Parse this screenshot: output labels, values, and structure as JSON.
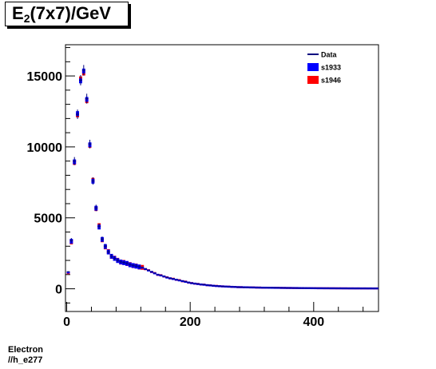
{
  "title": {
    "prefix": "E",
    "subscript": "2",
    "suffix": "(7x7)/GeV"
  },
  "footer": {
    "line1": "Electron",
    "line2": "//h_e277"
  },
  "colors": {
    "data": "#00007f",
    "s1933": "#0000ff",
    "s1946": "#ff0000"
  },
  "chart_data": {
    "type": "scatter",
    "title": "E2(7x7)/GeV",
    "xlabel": "",
    "ylabel": "",
    "xlim": [
      -2,
      505
    ],
    "ylim": [
      -1600,
      17200
    ],
    "xticks": [
      0,
      200,
      400
    ],
    "yticks": [
      0,
      5000,
      10000,
      15000
    ],
    "legend_position": "top-right",
    "legend": [
      {
        "name": "Data",
        "style": "line"
      },
      {
        "name": "s1933",
        "style": "box"
      },
      {
        "name": "s1946",
        "style": "box"
      }
    ],
    "x": [
      2.5,
      7.5,
      12.5,
      17.5,
      22.5,
      27.5,
      32.5,
      37.5,
      42.5,
      47.5,
      52.5,
      57.5,
      62.5,
      67.5,
      72.5,
      77.5,
      82.5,
      87.5,
      92.5,
      97.5,
      102.5,
      107.5,
      112.5,
      117.5,
      122.5,
      127.5,
      132.5,
      137.5,
      142.5,
      147.5,
      152.5,
      157.5,
      162.5,
      167.5,
      172.5,
      177.5,
      182.5,
      187.5,
      192.5,
      197.5,
      202.5,
      207.5,
      212.5,
      217.5,
      222.5,
      227.5,
      232.5,
      237.5,
      242.5,
      247.5,
      252.5,
      257.5,
      262.5,
      267.5,
      272.5,
      277.5,
      282.5,
      287.5,
      292.5,
      297.5,
      302.5,
      307.5,
      312.5,
      317.5,
      322.5,
      327.5,
      332.5,
      337.5,
      342.5,
      347.5,
      352.5,
      357.5,
      362.5,
      367.5,
      372.5,
      377.5,
      382.5,
      387.5,
      392.5,
      397.5,
      402.5,
      407.5,
      412.5,
      417.5,
      422.5,
      427.5,
      432.5,
      437.5,
      442.5,
      447.5,
      452.5,
      457.5,
      462.5,
      467.5,
      472.5,
      477.5,
      482.5,
      487.5,
      492.5,
      497.5,
      502.5
    ],
    "series": [
      {
        "name": "Data",
        "values": [
          1200,
          3400,
          9000,
          12300,
          14700,
          15400,
          13400,
          10200,
          7600,
          5700,
          4400,
          3500,
          3000,
          2600,
          2300,
          2150,
          2000,
          1900,
          1850,
          1800,
          1700,
          1650,
          1600,
          1550,
          1500,
          1400,
          1300,
          1200,
          1100,
          1000,
          950,
          880,
          800,
          750,
          700,
          650,
          600,
          550,
          500,
          450,
          400,
          370,
          340,
          310,
          290,
          260,
          240,
          220,
          200,
          185,
          170,
          160,
          150,
          140,
          130,
          120,
          115,
          110,
          105,
          100,
          95,
          90,
          85,
          80,
          78,
          75,
          72,
          70,
          68,
          65,
          62,
          60,
          58,
          56,
          54,
          52,
          50,
          48,
          46,
          44,
          42,
          40,
          39,
          38,
          37,
          36,
          35,
          34,
          33,
          32,
          31,
          30,
          30,
          29,
          29,
          28,
          28,
          27,
          27,
          26,
          26
        ]
      },
      {
        "name": "s1933",
        "values": [
          1150,
          3350,
          8950,
          12350,
          14650,
          15350,
          13350,
          10150,
          7580,
          5680,
          4350,
          3480,
          2980,
          2590,
          2290,
          2140,
          1990,
          1890,
          1840,
          1790,
          1690,
          1640,
          1590,
          1540,
          1490,
          1390,
          1290,
          1190,
          1090,
          990,
          940,
          870,
          790,
          740,
          690,
          640,
          590,
          540,
          490,
          440,
          395,
          365,
          335,
          305,
          285,
          255,
          235,
          215,
          195,
          182,
          168,
          158,
          148,
          138,
          128,
          118,
          113,
          108,
          103,
          98,
          93,
          88,
          83,
          79,
          77,
          74,
          71,
          69,
          67,
          64,
          61,
          59,
          57,
          55,
          53,
          51,
          49,
          47,
          45,
          43,
          41,
          39,
          38,
          37,
          36,
          35,
          34,
          33,
          32,
          31,
          30,
          29,
          29,
          28,
          28,
          27,
          27,
          26,
          26,
          25,
          25
        ]
      },
      {
        "name": "s1946",
        "values": [
          1100,
          3300,
          8900,
          12250,
          14800,
          15200,
          13250,
          10100,
          7650,
          5650,
          4450,
          3450,
          2950,
          2620,
          2280,
          2160,
          2010,
          1880,
          1860,
          1780,
          1710,
          1630,
          1610,
          1530,
          1510,
          1380,
          1310,
          1180,
          1110,
          980,
          960,
          860,
          810,
          730,
          710,
          630,
          610,
          530,
          510,
          430,
          405,
          360,
          345,
          300,
          295,
          250,
          245,
          210,
          205,
          180,
          172,
          155,
          152,
          135,
          132,
          115,
          117,
          105,
          107,
          95,
          97,
          85,
          87,
          78,
          79,
          73,
          73,
          68,
          69,
          63,
          63,
          58,
          59,
          54,
          55,
          50,
          51,
          46,
          47,
          43,
          43,
          39,
          40,
          37,
          38,
          35,
          36,
          33,
          34,
          31,
          32,
          29,
          30,
          28,
          29,
          27,
          28,
          26,
          27,
          25,
          26
        ]
      }
    ]
  }
}
